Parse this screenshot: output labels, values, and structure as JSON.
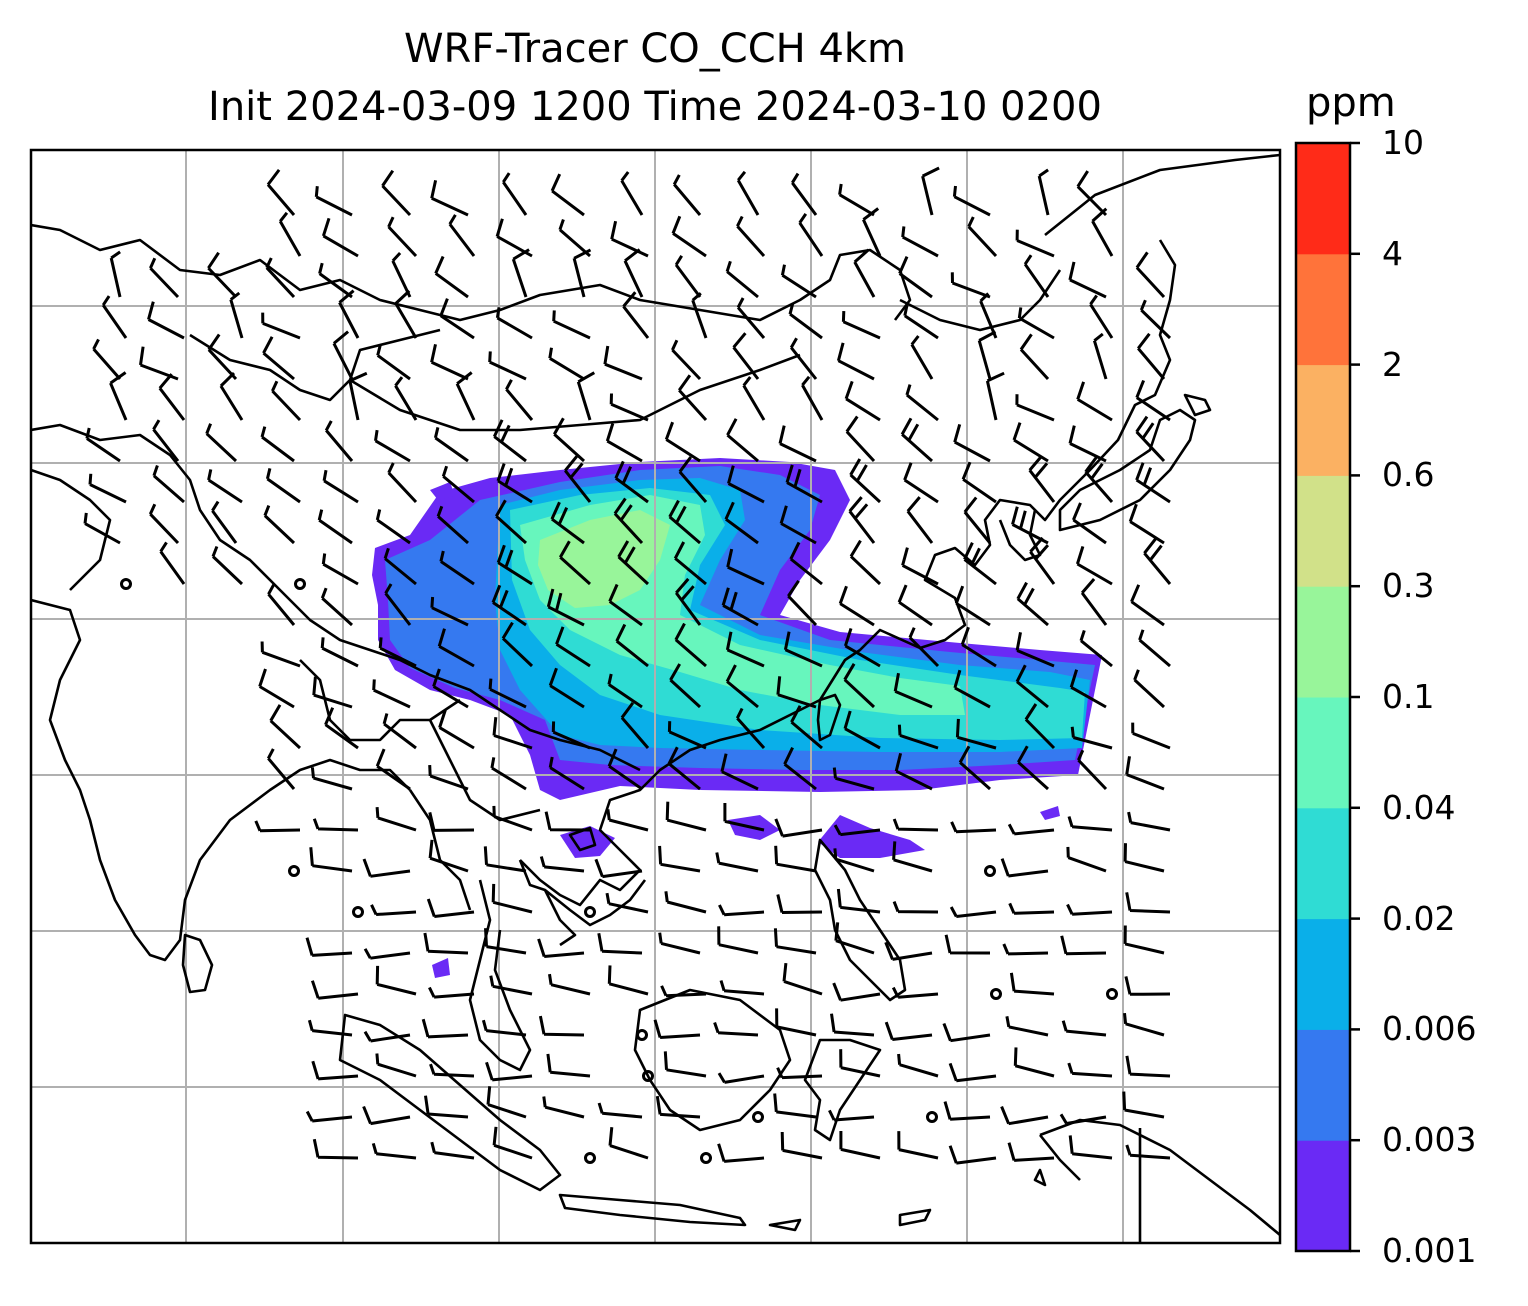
{
  "title": {
    "line1": "WRF-Tracer CO_CCH 4km",
    "line2": "Init 2024-03-09 1200 Time 2024-03-10 0200"
  },
  "colorbar": {
    "unit": "ppm",
    "levels": [
      "0.001",
      "0.003",
      "0.006",
      "0.02",
      "0.04",
      "0.1",
      "0.3",
      "0.6",
      "2",
      "4",
      "10"
    ],
    "colors": [
      "#6a2af5",
      "#3579f0",
      "#0aafe9",
      "#2fdcd4",
      "#67f6bd",
      "#98f59a",
      "#d1e189",
      "#fbb162",
      "#ff733a",
      "#ff2b18"
    ]
  },
  "map": {
    "gridlines": true,
    "coastline_color": "#000000",
    "grid_color": "#b0b0b0",
    "barb_color": "#000000"
  }
}
